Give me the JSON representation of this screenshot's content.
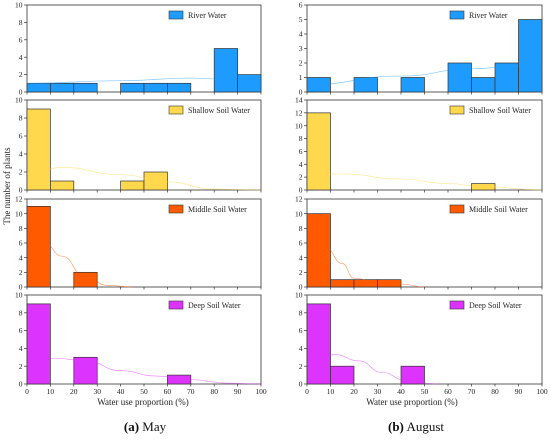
{
  "figure": {
    "ylabel": "The number of plants",
    "xlabel": "Water use proportion (%)",
    "x_ticks": [
      "0",
      "10",
      "20",
      "30",
      "40",
      "50",
      "60",
      "70",
      "80",
      "90",
      "100"
    ],
    "captions": [
      {
        "tag": "(a)",
        "text": "May"
      },
      {
        "tag": "(b)",
        "text": "August"
      }
    ]
  },
  "chart_data": [
    {
      "type": "bar",
      "panel": "May",
      "series_name": "River Water",
      "color": "#1E9BFF",
      "bin_edges": [
        0,
        10,
        20,
        30,
        40,
        50,
        60,
        70,
        80,
        90,
        100
      ],
      "values": [
        1,
        1,
        1,
        0,
        1,
        1,
        1,
        0,
        5,
        2
      ],
      "ylim": [
        0,
        10
      ],
      "yticks": [
        0,
        2,
        4,
        6,
        8,
        10
      ],
      "density_curve": [
        [
          0,
          1.0
        ],
        [
          40,
          1.3
        ],
        [
          70,
          1.6
        ],
        [
          90,
          1.4
        ],
        [
          100,
          1.3
        ]
      ]
    },
    {
      "type": "bar",
      "panel": "August",
      "series_name": "River Water",
      "color": "#1E9BFF",
      "bin_edges": [
        0,
        10,
        20,
        30,
        40,
        50,
        60,
        70,
        80,
        90,
        100
      ],
      "values": [
        1,
        0,
        1,
        0,
        1,
        0,
        2,
        1,
        2,
        5
      ],
      "ylim": [
        0,
        6
      ],
      "yticks": [
        0,
        1,
        2,
        3,
        4,
        5,
        6
      ],
      "density_curve": [
        [
          0,
          0.5
        ],
        [
          40,
          1.1
        ],
        [
          70,
          1.6
        ],
        [
          90,
          1.8
        ],
        [
          100,
          1.8
        ]
      ]
    },
    {
      "type": "bar",
      "panel": "May",
      "series_name": "Shallow Soil Water",
      "color": "#FFD84D",
      "bin_edges": [
        0,
        10,
        20,
        30,
        40,
        50,
        60,
        70,
        80,
        90,
        100
      ],
      "values": [
        9,
        1,
        0,
        0,
        1,
        2,
        0,
        0,
        0,
        0
      ],
      "ylim": [
        0,
        10
      ],
      "yticks": [
        0,
        2,
        4,
        6,
        8,
        10
      ],
      "density_curve": [
        [
          0,
          1.8
        ],
        [
          15,
          2.5
        ],
        [
          40,
          1.7
        ],
        [
          60,
          0.9
        ],
        [
          80,
          0.1
        ],
        [
          100,
          0.0
        ]
      ]
    },
    {
      "type": "bar",
      "panel": "August",
      "series_name": "Shallow Soil Water",
      "color": "#FFD84D",
      "bin_edges": [
        0,
        10,
        20,
        30,
        40,
        50,
        60,
        70,
        80,
        90,
        100
      ],
      "values": [
        12,
        0,
        0,
        0,
        0,
        0,
        0,
        1,
        0,
        0
      ],
      "ylim": [
        0,
        14
      ],
      "yticks": [
        0,
        2,
        4,
        6,
        8,
        10,
        12,
        14
      ],
      "density_curve": [
        [
          0,
          2.4
        ],
        [
          15,
          2.5
        ],
        [
          40,
          1.7
        ],
        [
          60,
          1.0
        ],
        [
          75,
          0.5
        ],
        [
          100,
          0.0
        ]
      ]
    },
    {
      "type": "bar",
      "panel": "May",
      "series_name": "Middle Soil Water",
      "color": "#FF5A00",
      "bin_edges": [
        0,
        10,
        20,
        30,
        40,
        50,
        60,
        70,
        80,
        90,
        100
      ],
      "values": [
        11,
        0,
        2,
        0,
        0,
        0,
        0,
        0,
        0,
        0
      ],
      "ylim": [
        0,
        12
      ],
      "yticks": [
        0,
        2,
        4,
        6,
        8,
        10,
        12
      ],
      "density_curve": [
        [
          0,
          4.5
        ],
        [
          7,
          6.1
        ],
        [
          15,
          4.2
        ],
        [
          25,
          1.2
        ],
        [
          35,
          0.2
        ],
        [
          45,
          0.0
        ]
      ]
    },
    {
      "type": "bar",
      "panel": "August",
      "series_name": "Middle Soil Water",
      "color": "#FF5A00",
      "bin_edges": [
        0,
        10,
        20,
        30,
        40,
        50,
        60,
        70,
        80,
        90,
        100
      ],
      "values": [
        10,
        1,
        1,
        1,
        0,
        0,
        0,
        0,
        0,
        0
      ],
      "ylim": [
        0,
        12
      ],
      "yticks": [
        0,
        2,
        4,
        6,
        8,
        10,
        12
      ],
      "density_curve": [
        [
          0,
          4.2
        ],
        [
          8,
          5.3
        ],
        [
          15,
          3.2
        ],
        [
          20,
          1.2
        ],
        [
          30,
          0.6
        ],
        [
          40,
          0.4
        ],
        [
          50,
          0.0
        ]
      ]
    },
    {
      "type": "bar",
      "panel": "May",
      "series_name": "Deep Soil Water",
      "color": "#DD33FF",
      "bin_edges": [
        0,
        10,
        20,
        30,
        40,
        50,
        60,
        70,
        80,
        90,
        100
      ],
      "values": [
        9,
        0,
        3,
        0,
        0,
        0,
        1,
        0,
        0,
        0
      ],
      "ylim": [
        0,
        10
      ],
      "yticks": [
        0,
        2,
        4,
        6,
        8,
        10
      ],
      "density_curve": [
        [
          0,
          2.2
        ],
        [
          12,
          2.9
        ],
        [
          25,
          2.6
        ],
        [
          40,
          1.5
        ],
        [
          55,
          0.9
        ],
        [
          70,
          0.5
        ],
        [
          85,
          0.1
        ],
        [
          100,
          0.0
        ]
      ]
    },
    {
      "type": "bar",
      "panel": "August",
      "series_name": "Deep Soil Water",
      "color": "#DD33FF",
      "bin_edges": [
        0,
        10,
        20,
        30,
        40,
        50,
        60,
        70,
        80,
        90,
        100
      ],
      "values": [
        9,
        2,
        0,
        0,
        2,
        0,
        0,
        0,
        0,
        0
      ],
      "ylim": [
        0,
        10
      ],
      "yticks": [
        0,
        2,
        4,
        6,
        8,
        10
      ],
      "density_curve": [
        [
          0,
          2.2
        ],
        [
          12,
          3.3
        ],
        [
          22,
          2.6
        ],
        [
          32,
          1.3
        ],
        [
          42,
          0.4
        ],
        [
          55,
          0.0
        ]
      ]
    }
  ]
}
